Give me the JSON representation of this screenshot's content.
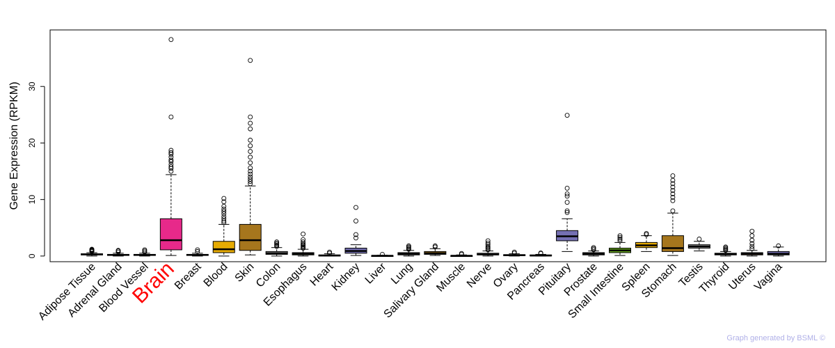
{
  "chart_data": {
    "type": "boxplot",
    "ylabel": "Gene Expression (RPKM)",
    "ylim": [
      -1,
      40
    ],
    "yticks": [
      0,
      10,
      20,
      30
    ],
    "highlight": "Brain",
    "highlight_color": "#ff0000",
    "categories": [
      {
        "name": "Adipose Tissue",
        "color": "#a0a0a0",
        "q1": 0.2,
        "median": 0.3,
        "q3": 0.4,
        "lo": 0.0,
        "hi": 0.6,
        "outliers": [
          0.8,
          0.9,
          1.0,
          1.1,
          1.2
        ]
      },
      {
        "name": "Adrenal Gland",
        "color": "#a0a0a0",
        "q1": 0.1,
        "median": 0.2,
        "q3": 0.3,
        "lo": 0.0,
        "hi": 0.5,
        "outliers": [
          0.7,
          0.9,
          1.0
        ]
      },
      {
        "name": "Blood Vessel",
        "color": "#a0a0a0",
        "q1": 0.1,
        "median": 0.2,
        "q3": 0.3,
        "lo": 0.0,
        "hi": 0.5,
        "outliers": [
          0.7,
          0.9,
          1.1
        ]
      },
      {
        "name": "Brain",
        "color": "#e7298a",
        "q1": 1.1,
        "median": 2.8,
        "q3": 6.6,
        "lo": 0.1,
        "hi": 14.4,
        "outliers": [
          15.0,
          15.5,
          15.8,
          16.2,
          16.7,
          17.0,
          17.5,
          18.0,
          18.3,
          18.7,
          24.6,
          38.3
        ]
      },
      {
        "name": "Breast",
        "color": "#a0a0a0",
        "q1": 0.1,
        "median": 0.2,
        "q3": 0.3,
        "lo": 0.0,
        "hi": 0.5,
        "outliers": [
          0.8,
          1.1
        ]
      },
      {
        "name": "Blood",
        "color": "#e6ab02",
        "q1": 0.6,
        "median": 1.2,
        "q3": 2.6,
        "lo": 0.0,
        "hi": 5.6,
        "outliers": [
          5.9,
          6.2,
          6.6,
          7.0,
          7.5,
          7.9,
          8.3,
          8.8,
          9.6,
          10.2
        ]
      },
      {
        "name": "Skin",
        "color": "#a6761d",
        "q1": 1.0,
        "median": 2.8,
        "q3": 5.6,
        "lo": 0.2,
        "hi": 12.4,
        "outliers": [
          12.8,
          13.2,
          13.6,
          14.0,
          14.5,
          15.0,
          15.6,
          16.5,
          17.5,
          18.5,
          19.5,
          20.5,
          22.5,
          23.5,
          24.6,
          34.6
        ]
      },
      {
        "name": "Colon",
        "color": "#a0a0a0",
        "q1": 0.3,
        "median": 0.5,
        "q3": 0.8,
        "lo": 0.0,
        "hi": 1.5,
        "outliers": [
          1.7,
          1.9,
          2.1,
          2.3,
          2.5
        ]
      },
      {
        "name": "Esophagus",
        "color": "#66a61e",
        "q1": 0.2,
        "median": 0.4,
        "q3": 0.6,
        "lo": 0.0,
        "hi": 1.2,
        "outliers": [
          1.4,
          1.6,
          1.8,
          2.0,
          2.2,
          2.5,
          2.9,
          3.9
        ]
      },
      {
        "name": "Heart",
        "color": "#a0a0a0",
        "q1": 0.0,
        "median": 0.1,
        "q3": 0.2,
        "lo": 0.0,
        "hi": 0.4,
        "outliers": [
          0.5,
          0.7
        ]
      },
      {
        "name": "Kidney",
        "color": "#7570b3",
        "q1": 0.5,
        "median": 0.9,
        "q3": 1.4,
        "lo": 0.1,
        "hi": 2.0,
        "outliers": [
          3.2,
          3.8,
          6.2,
          8.6
        ]
      },
      {
        "name": "Liver",
        "color": "#a0a0a0",
        "q1": 0.0,
        "median": 0.05,
        "q3": 0.1,
        "lo": 0.0,
        "hi": 0.15,
        "outliers": [
          0.3
        ]
      },
      {
        "name": "Lung",
        "color": "#a0a0a0",
        "q1": 0.2,
        "median": 0.4,
        "q3": 0.6,
        "lo": 0.0,
        "hi": 1.0,
        "outliers": [
          1.2,
          1.4,
          1.6,
          1.8
        ]
      },
      {
        "name": "Salivary Gland",
        "color": "#a6761d",
        "q1": 0.3,
        "median": 0.5,
        "q3": 0.8,
        "lo": 0.1,
        "hi": 1.3,
        "outliers": [
          1.6,
          1.8
        ]
      },
      {
        "name": "Muscle",
        "color": "#a0a0a0",
        "q1": 0.0,
        "median": 0.05,
        "q3": 0.1,
        "lo": 0.0,
        "hi": 0.2,
        "outliers": [
          0.3,
          0.45
        ]
      },
      {
        "name": "Nerve",
        "color": "#a0a0a0",
        "q1": 0.2,
        "median": 0.3,
        "q3": 0.5,
        "lo": 0.0,
        "hi": 0.9,
        "outliers": [
          1.1,
          1.3,
          1.5,
          1.7,
          2.0,
          2.3,
          2.7
        ]
      },
      {
        "name": "Ovary",
        "color": "#a0a0a0",
        "q1": 0.1,
        "median": 0.15,
        "q3": 0.25,
        "lo": 0.0,
        "hi": 0.4,
        "outliers": [
          0.5,
          0.7
        ]
      },
      {
        "name": "Pancreas",
        "color": "#a0a0a0",
        "q1": 0.05,
        "median": 0.1,
        "q3": 0.2,
        "lo": 0.0,
        "hi": 0.3,
        "outliers": [
          0.45,
          0.55
        ]
      },
      {
        "name": "Pituitary",
        "color": "#7570b3",
        "q1": 2.7,
        "median": 3.5,
        "q3": 4.5,
        "lo": 0.8,
        "hi": 6.6,
        "outliers": [
          7.7,
          8.0,
          9.5,
          10.6,
          11.0,
          12.0,
          24.9
        ]
      },
      {
        "name": "Prostate",
        "color": "#a0a0a0",
        "q1": 0.2,
        "median": 0.4,
        "q3": 0.6,
        "lo": 0.0,
        "hi": 0.9,
        "outliers": [
          1.1,
          1.3,
          1.5
        ]
      },
      {
        "name": "Small Intestine",
        "color": "#66a61e",
        "q1": 0.6,
        "median": 1.0,
        "q3": 1.4,
        "lo": 0.1,
        "hi": 2.4,
        "outliers": [
          2.7,
          3.0,
          3.3,
          3.6
        ]
      },
      {
        "name": "Spleen",
        "color": "#e6ab02",
        "q1": 1.5,
        "median": 1.9,
        "q3": 2.4,
        "lo": 0.8,
        "hi": 3.6,
        "outliers": [
          3.8,
          4.0
        ]
      },
      {
        "name": "Stomach",
        "color": "#a6761d",
        "q1": 0.8,
        "median": 1.4,
        "q3": 3.6,
        "lo": 0.1,
        "hi": 7.6,
        "outliers": [
          8.0,
          9.8,
          10.4,
          11.0,
          11.6,
          12.2,
          12.8,
          13.4,
          14.2
        ]
      },
      {
        "name": "Testis",
        "color": "#a0a0a0",
        "q1": 1.4,
        "median": 1.7,
        "q3": 2.0,
        "lo": 0.9,
        "hi": 2.6,
        "outliers": [
          3.0
        ]
      },
      {
        "name": "Thyroid",
        "color": "#a0a0a0",
        "q1": 0.2,
        "median": 0.35,
        "q3": 0.5,
        "lo": 0.0,
        "hi": 0.8,
        "outliers": [
          1.0,
          1.2,
          1.4,
          1.6
        ]
      },
      {
        "name": "Uterus",
        "color": "#d95f02",
        "q1": 0.2,
        "median": 0.4,
        "q3": 0.6,
        "lo": 0.0,
        "hi": 1.0,
        "outliers": [
          1.3,
          1.7,
          2.2,
          2.8,
          3.6,
          4.4
        ]
      },
      {
        "name": "Vagina",
        "color": "#7570b3",
        "q1": 0.2,
        "median": 0.4,
        "q3": 0.8,
        "lo": 0.0,
        "hi": 1.6,
        "outliers": [
          1.8
        ]
      }
    ]
  },
  "footer": {
    "credit": "Graph generated by BSML ©"
  }
}
